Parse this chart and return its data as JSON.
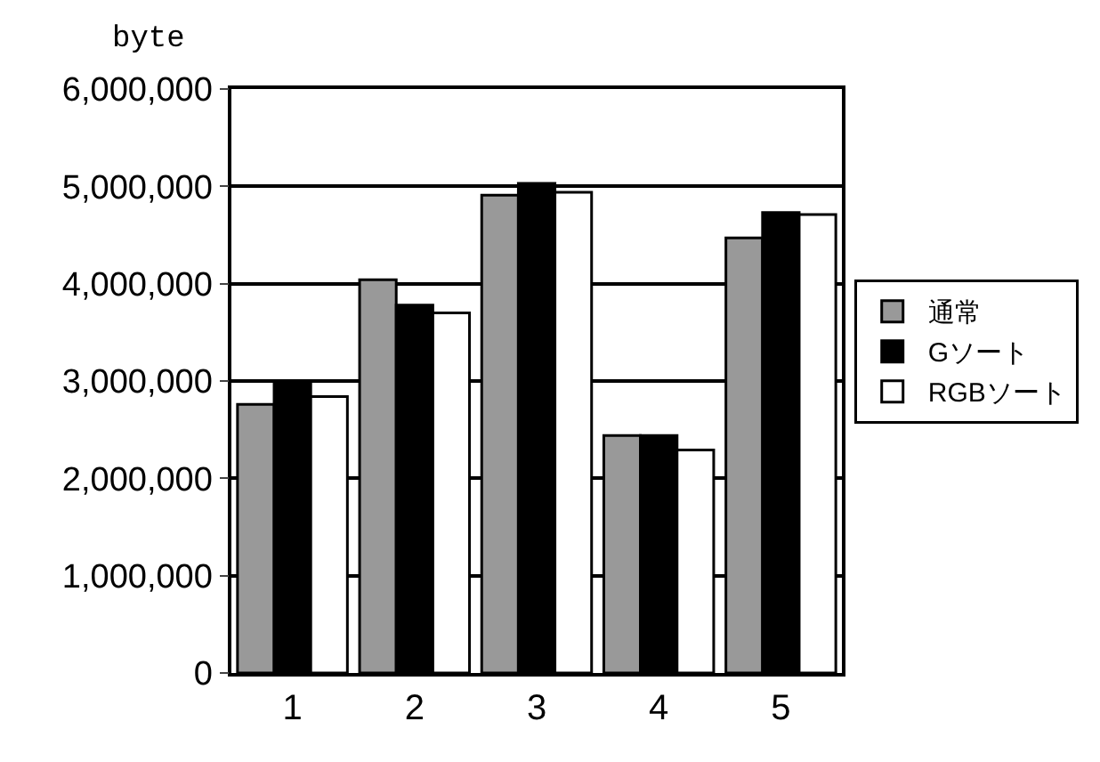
{
  "chart_data": {
    "type": "bar",
    "ylabel": "byte",
    "categories": [
      "1",
      "2",
      "3",
      "4",
      "5"
    ],
    "series": [
      {
        "name": "通常",
        "color": "#999999",
        "values": [
          2760000,
          4040000,
          4910000,
          2440000,
          4470000
        ]
      },
      {
        "name": "Gソート",
        "color": "#000000",
        "values": [
          2970000,
          3780000,
          5030000,
          2440000,
          4730000
        ]
      },
      {
        "name": "RGBソート",
        "color": "#ffffff",
        "values": [
          2840000,
          3700000,
          4940000,
          2290000,
          4710000
        ]
      }
    ],
    "ylim": [
      0,
      6000000
    ],
    "yticks": [
      {
        "value": 0,
        "label": "0"
      },
      {
        "value": 1000000,
        "label": "1,000,000"
      },
      {
        "value": 2000000,
        "label": "2,000,000"
      },
      {
        "value": 3000000,
        "label": "3,000,000"
      },
      {
        "value": 4000000,
        "label": "4,000,000"
      },
      {
        "value": 5000000,
        "label": "5,000,000"
      },
      {
        "value": 6000000,
        "label": "6,000,000"
      }
    ],
    "grid": "y",
    "legend": "right"
  }
}
